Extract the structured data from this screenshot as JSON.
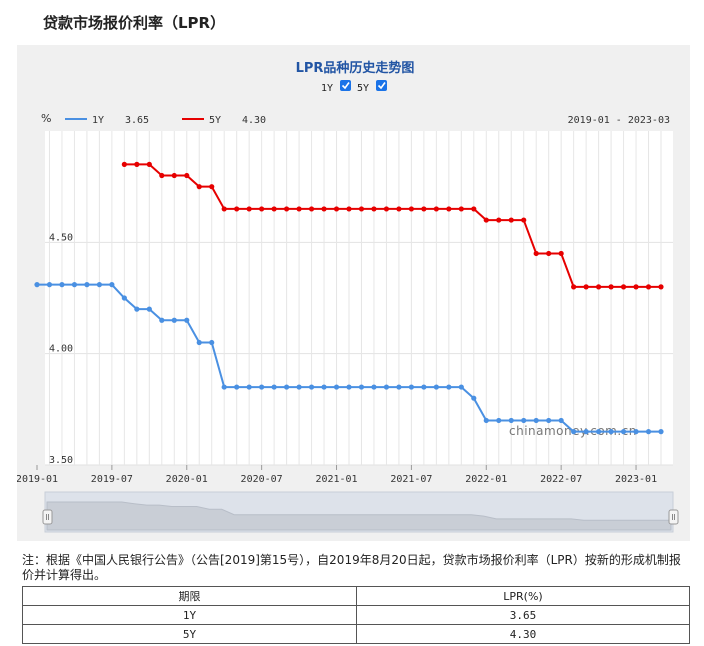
{
  "page": {
    "title": "贷款市场报价利率（LPR）",
    "watermark": "chinamoney.com.cn",
    "note": "注：根据《中国人民银行公告》（公告[2019]第15号），自2019年8月20日起，贷款市场报价利率（LPR）按新的形成机制报价并计算得出。"
  },
  "controls": {
    "toggle_1y_label": "1Y",
    "toggle_5y_label": "5Y",
    "toggle_1y_checked": true,
    "toggle_5y_checked": true
  },
  "table": {
    "headers": [
      "期限",
      "LPR(%)"
    ],
    "rows": [
      {
        "term": "1Y",
        "rate": "3.65"
      },
      {
        "term": "5Y",
        "rate": "4.30"
      }
    ]
  },
  "chart_data": {
    "type": "line",
    "title": "LPR品种历史走势图",
    "ylabel": "%",
    "date_range_label": "2019-01 - 2023-03",
    "ylim": [
      3.5,
      5.0
    ],
    "yticks": [
      "4.50",
      "4.00",
      "3.50"
    ],
    "xticks": [
      "2019-01",
      "2019-07",
      "2020-01",
      "2020-07",
      "2021-01",
      "2021-07",
      "2022-01",
      "2022-07",
      "2023-01"
    ],
    "grid": true,
    "legend_position": "top-left",
    "colors": {
      "1Y": "#4a90e2",
      "5Y": "#e60000"
    },
    "x": [
      "2019-01",
      "2019-02",
      "2019-03",
      "2019-04",
      "2019-05",
      "2019-06",
      "2019-07",
      "2019-08",
      "2019-09",
      "2019-10",
      "2019-11",
      "2019-12",
      "2020-01",
      "2020-02",
      "2020-03",
      "2020-04",
      "2020-05",
      "2020-06",
      "2020-07",
      "2020-08",
      "2020-09",
      "2020-10",
      "2020-11",
      "2020-12",
      "2021-01",
      "2021-02",
      "2021-03",
      "2021-04",
      "2021-05",
      "2021-06",
      "2021-07",
      "2021-08",
      "2021-09",
      "2021-10",
      "2021-11",
      "2021-12",
      "2022-01",
      "2022-02",
      "2022-03",
      "2022-04",
      "2022-05",
      "2022-06",
      "2022-07",
      "2022-08",
      "2022-09",
      "2022-10",
      "2022-11",
      "2022-12",
      "2023-01",
      "2023-02",
      "2023-03"
    ],
    "series": [
      {
        "name": "1Y",
        "latest": "3.65",
        "values": [
          4.31,
          4.31,
          4.31,
          4.31,
          4.31,
          4.31,
          4.31,
          4.25,
          4.2,
          4.2,
          4.15,
          4.15,
          4.15,
          4.05,
          4.05,
          3.85,
          3.85,
          3.85,
          3.85,
          3.85,
          3.85,
          3.85,
          3.85,
          3.85,
          3.85,
          3.85,
          3.85,
          3.85,
          3.85,
          3.85,
          3.85,
          3.85,
          3.85,
          3.85,
          3.85,
          3.8,
          3.7,
          3.7,
          3.7,
          3.7,
          3.7,
          3.7,
          3.7,
          3.65,
          3.65,
          3.65,
          3.65,
          3.65,
          3.65,
          3.65,
          3.65
        ]
      },
      {
        "name": "5Y",
        "latest": "4.30",
        "values": [
          null,
          null,
          null,
          null,
          null,
          null,
          null,
          4.85,
          4.85,
          4.85,
          4.8,
          4.8,
          4.8,
          4.75,
          4.75,
          4.65,
          4.65,
          4.65,
          4.65,
          4.65,
          4.65,
          4.65,
          4.65,
          4.65,
          4.65,
          4.65,
          4.65,
          4.65,
          4.65,
          4.65,
          4.65,
          4.65,
          4.65,
          4.65,
          4.65,
          4.65,
          4.6,
          4.6,
          4.6,
          4.6,
          4.45,
          4.45,
          4.45,
          4.3,
          4.3,
          4.3,
          4.3,
          4.3,
          4.3,
          4.3,
          4.3
        ]
      }
    ]
  }
}
